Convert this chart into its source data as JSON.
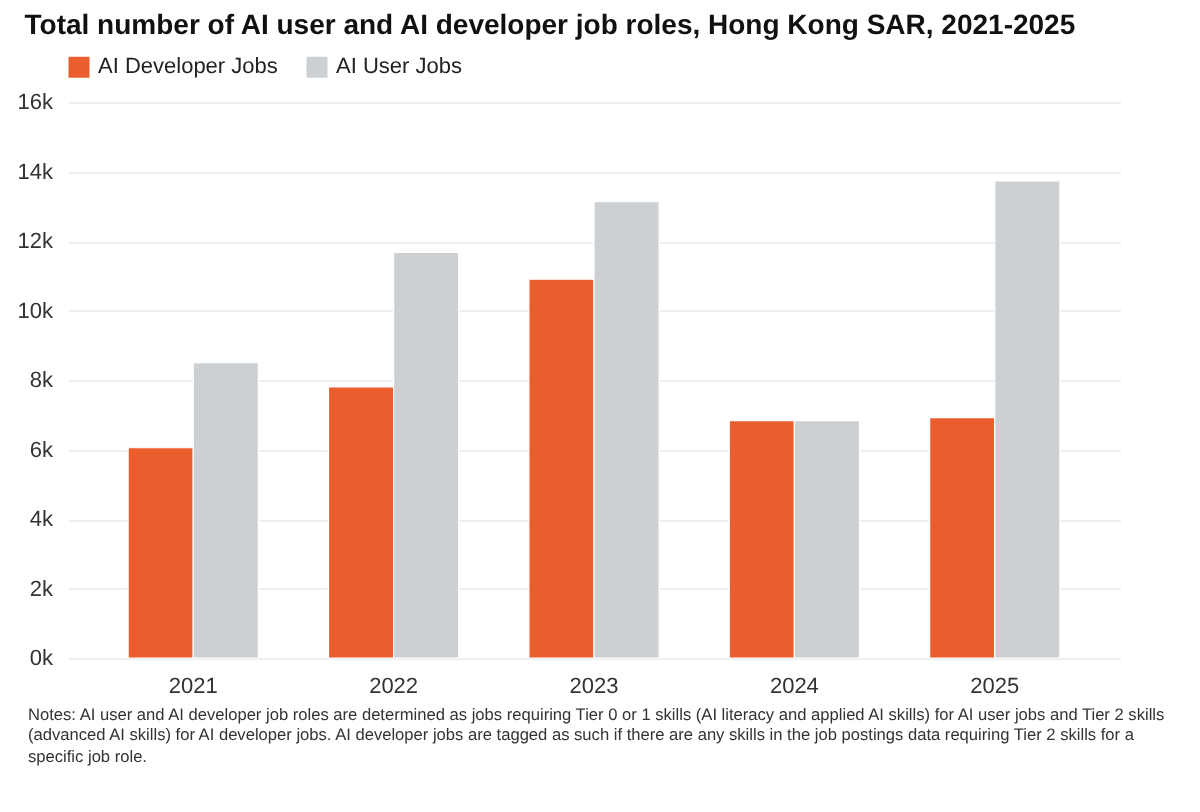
{
  "chart_data": {
    "type": "bar",
    "title": "Total number of AI user and AI developer job roles, Hong Kong SAR, 2021-2025",
    "categories": [
      "2021",
      "2022",
      "2023",
      "2024",
      "2025"
    ],
    "series": [
      {
        "name": "AI Developer Jobs",
        "color": "#e95e2c",
        "values": [
          6050,
          7800,
          10900,
          6830,
          6920
        ]
      },
      {
        "name": "AI User Jobs",
        "color": "#ccd0d3",
        "values": [
          8500,
          11670,
          13130,
          6830,
          13730
        ]
      }
    ],
    "ylim": [
      0,
      16000
    ],
    "yticks": [
      {
        "value": 0,
        "label": "0k"
      },
      {
        "value": 2000,
        "label": "2k"
      },
      {
        "value": 4000,
        "label": "4k"
      },
      {
        "value": 6000,
        "label": "6k"
      },
      {
        "value": 8000,
        "label": "8k"
      },
      {
        "value": 10000,
        "label": "10k"
      },
      {
        "value": 12000,
        "label": "12k"
      },
      {
        "value": 14000,
        "label": "14k"
      },
      {
        "value": 16000,
        "label": "16k"
      }
    ],
    "grid": "y",
    "legend": "top left",
    "annotations": [
      "Notes: AI user and AI developer job roles are determined as jobs requiring Tier 0 or 1 skills (AI literacy and applied AI skills) for AI user jobs and Tier 2 skills (advanced AI skills) for AI developer jobs. AI developer jobs are tagged as such if there are any skills in the job postings data requiring Tier 2 skills for a specific job role."
    ]
  }
}
